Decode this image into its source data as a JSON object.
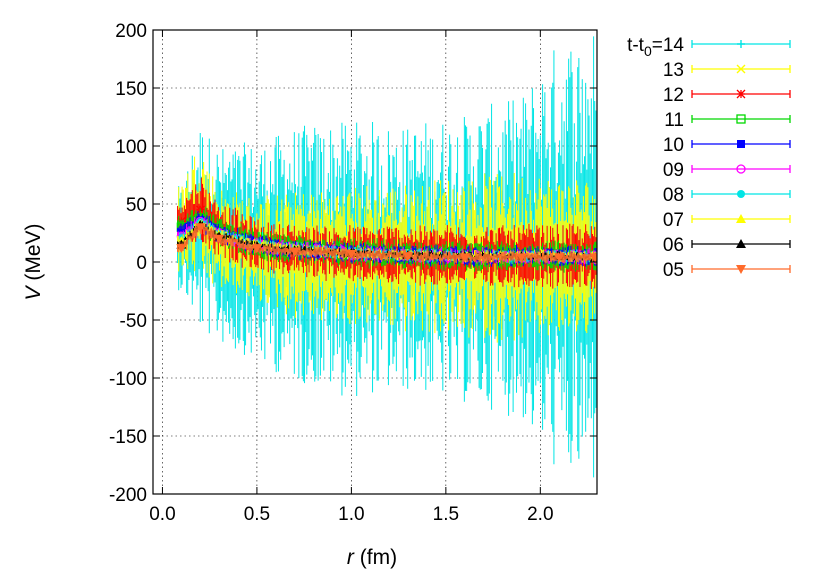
{
  "chart_data": {
    "type": "scatter",
    "title": "",
    "xlabel_var": "r",
    "xlabel_unit": " (fm)",
    "ylabel_var": "V",
    "ylabel_unit": " (MeV)",
    "xlim": [
      -0.05,
      2.3
    ],
    "ylim": [
      -200,
      200
    ],
    "xticks": [
      0.0,
      0.5,
      1.0,
      1.5,
      2.0
    ],
    "xtick_labels": [
      "0.0",
      "0.5",
      "1.0",
      "1.5",
      "2.0"
    ],
    "yticks": [
      -200,
      -150,
      -100,
      -50,
      0,
      50,
      100,
      150,
      200
    ],
    "ytick_labels": [
      "-200",
      "-150",
      "-100",
      "-50",
      "0",
      "50",
      "100",
      "150",
      "200"
    ],
    "grid": true,
    "legend_position": "outside-right",
    "legend_title_prefix": "t-t",
    "legend_title_sub": "0",
    "legend_title_suffix": "=14",
    "series": [
      {
        "name": "14",
        "color": "#00e5e5",
        "marker": "plus",
        "r": [
          0.1,
          0.2,
          0.3,
          0.5,
          0.7,
          1.0,
          1.3,
          1.6,
          1.9,
          2.1,
          2.29
        ],
        "center": [
          20,
          30,
          15,
          8,
          6,
          4,
          3,
          3,
          3,
          4,
          4
        ],
        "error": [
          45,
          90,
          85,
          95,
          110,
          120,
          115,
          125,
          140,
          190,
          200
        ]
      },
      {
        "name": "13",
        "color": "#ffff00",
        "marker": "x",
        "r": [
          0.1,
          0.2,
          0.3,
          0.5,
          0.7,
          1.0,
          1.3,
          1.6,
          1.9,
          2.1,
          2.29
        ],
        "center": [
          30,
          45,
          20,
          10,
          7,
          5,
          4,
          4,
          4,
          4,
          4
        ],
        "error": [
          40,
          60,
          45,
          45,
          55,
          60,
          65,
          70,
          75,
          70,
          70
        ]
      },
      {
        "name": "12",
        "color": "#ff0000",
        "marker": "star",
        "r": [
          0.1,
          0.2,
          0.3,
          0.5,
          0.7,
          1.0,
          1.3,
          1.6,
          1.9,
          2.1,
          2.29
        ],
        "center": [
          35,
          45,
          28,
          14,
          10,
          7,
          6,
          5,
          5,
          5,
          5
        ],
        "error": [
          20,
          30,
          25,
          22,
          22,
          24,
          26,
          26,
          27,
          27,
          28
        ]
      },
      {
        "name": "11",
        "color": "#00d800",
        "marker": "square-open",
        "r": [
          0.1,
          0.2,
          0.3,
          0.5,
          0.7,
          1.0,
          1.3,
          1.6,
          1.9,
          2.1,
          2.29
        ],
        "center": [
          30,
          38,
          26,
          15,
          11,
          8,
          6,
          5,
          5,
          5,
          5
        ],
        "error": [
          10,
          12,
          12,
          12,
          12,
          12,
          12,
          12,
          13,
          13,
          13
        ]
      },
      {
        "name": "10",
        "color": "#0000ff",
        "marker": "square",
        "r": [
          0.1,
          0.2,
          0.3,
          0.5,
          0.7,
          1.0,
          1.3,
          1.6,
          1.9,
          2.1,
          2.29
        ],
        "center": [
          25,
          36,
          25,
          15,
          11,
          8,
          6,
          5,
          5,
          5,
          5
        ],
        "error": [
          8,
          8,
          8,
          8,
          8,
          8,
          8,
          8,
          8,
          8,
          8
        ]
      },
      {
        "name": "09",
        "color": "#ff00ff",
        "marker": "circle-open",
        "r": [
          0.1,
          0.2,
          0.3,
          0.5,
          0.7,
          1.0,
          1.3,
          1.6,
          1.9,
          2.1,
          2.29
        ],
        "center": [
          22,
          35,
          24,
          15,
          11,
          8,
          6,
          5,
          5,
          5,
          5
        ],
        "error": [
          6,
          6,
          6,
          6,
          6,
          6,
          6,
          6,
          6,
          6,
          6
        ]
      },
      {
        "name": "08",
        "color": "#00e5e5",
        "marker": "circle",
        "r": [
          0.1,
          0.2,
          0.3,
          0.5,
          0.7,
          1.0,
          1.3,
          1.6,
          1.9,
          2.1,
          2.29
        ],
        "center": [
          20,
          34,
          24,
          15,
          11,
          8,
          6,
          5,
          5,
          5,
          5
        ],
        "error": [
          5,
          5,
          5,
          5,
          5,
          5,
          5,
          5,
          5,
          5,
          5
        ]
      },
      {
        "name": "07",
        "color": "#ffff00",
        "marker": "triangle",
        "r": [
          0.1,
          0.2,
          0.3,
          0.5,
          0.7,
          1.0,
          1.3,
          1.6,
          1.9,
          2.1,
          2.29
        ],
        "center": [
          18,
          33,
          23,
          15,
          11,
          8,
          6,
          5,
          5,
          5,
          5
        ],
        "error": [
          4,
          4,
          4,
          4,
          4,
          4,
          4,
          4,
          4,
          4,
          4
        ]
      },
      {
        "name": "06",
        "color": "#000000",
        "marker": "triangle",
        "r": [
          0.1,
          0.2,
          0.3,
          0.5,
          0.7,
          1.0,
          1.3,
          1.6,
          1.9,
          2.1,
          2.29
        ],
        "center": [
          15,
          32,
          22,
          14,
          10,
          8,
          6,
          5,
          5,
          5,
          4
        ],
        "error": [
          3,
          3,
          3,
          3,
          3,
          3,
          3,
          3,
          3,
          3,
          3
        ]
      },
      {
        "name": "05",
        "color": "#ff6a2a",
        "marker": "triangle-down",
        "r": [
          0.1,
          0.2,
          0.3,
          0.5,
          0.7,
          1.0,
          1.3,
          1.6,
          1.9,
          2.1,
          2.29
        ],
        "center": [
          12,
          30,
          20,
          12,
          9,
          7,
          5,
          4,
          4,
          4,
          4
        ],
        "error": [
          5,
          5,
          5,
          5,
          5,
          5,
          5,
          5,
          5,
          5,
          5
        ]
      }
    ]
  }
}
